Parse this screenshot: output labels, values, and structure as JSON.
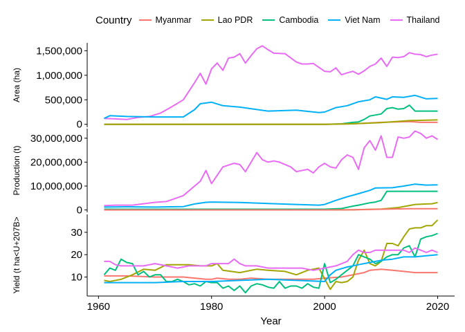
{
  "legend": {
    "title": "Country",
    "items": [
      {
        "name": "Myanmar",
        "color": "#F8766D"
      },
      {
        "name": "Lao PDR",
        "color": "#A3A500"
      },
      {
        "name": "Cambodia",
        "color": "#00BF7D"
      },
      {
        "name": "Viet Nam",
        "color": "#00B0F6"
      },
      {
        "name": "Thailand",
        "color": "#E76BF3"
      }
    ]
  },
  "chart_data": [
    {
      "type": "line",
      "title": "",
      "ylabel": "Area (ha)",
      "ylim": [
        -60000,
        1660000
      ],
      "yticks": [
        0,
        500000,
        1000000,
        1500000
      ],
      "ytick_labels": [
        "0",
        "500,000",
        "1,000,000",
        "1,500,000"
      ],
      "series": [
        {
          "name": "Thailand",
          "color": "#E76BF3",
          "x": [
            1961,
            1963,
            1965,
            1967,
            1969,
            1971,
            1973,
            1975,
            1977,
            1978,
            1979,
            1980,
            1981,
            1982,
            1983,
            1984,
            1985,
            1986,
            1987,
            1988,
            1989,
            1990,
            1991,
            1993,
            1995,
            1996,
            1997,
            1998,
            2000,
            2001,
            2002,
            2003,
            2004,
            2005,
            2006,
            2007,
            2008,
            2009,
            2010,
            2011,
            2012,
            2013,
            2014,
            2015,
            2016,
            2017,
            2018,
            2019,
            2020
          ],
          "y": [
            120000,
            110000,
            100000,
            140000,
            160000,
            230000,
            360000,
            500000,
            850000,
            1040000,
            820000,
            1130000,
            1250000,
            1100000,
            1350000,
            1370000,
            1440000,
            1250000,
            1400000,
            1540000,
            1600000,
            1520000,
            1450000,
            1440000,
            1270000,
            1230000,
            1230000,
            1240000,
            1080000,
            1070000,
            1150000,
            1010000,
            1050000,
            1080000,
            1020000,
            1090000,
            1180000,
            1230000,
            1350000,
            1180000,
            1370000,
            1360000,
            1380000,
            1460000,
            1430000,
            1420000,
            1380000,
            1410000,
            1430000
          ]
        },
        {
          "name": "Viet Nam",
          "color": "#00B0F6",
          "x": [
            1961,
            1962,
            1965,
            1970,
            1975,
            1977,
            1978,
            1980,
            1982,
            1985,
            1990,
            1995,
            1999,
            2000,
            2002,
            2004,
            2006,
            2008,
            2009,
            2011,
            2012,
            2014,
            2016,
            2018,
            2020
          ],
          "y": [
            120000,
            175000,
            160000,
            150000,
            150000,
            300000,
            420000,
            450000,
            380000,
            350000,
            270000,
            290000,
            240000,
            250000,
            340000,
            380000,
            460000,
            500000,
            560000,
            510000,
            560000,
            550000,
            590000,
            520000,
            530000
          ]
        },
        {
          "name": "Cambodia",
          "color": "#00BF7D",
          "x": [
            1961,
            1980,
            2000,
            2003,
            2005,
            2006,
            2007,
            2008,
            2010,
            2011,
            2012,
            2013,
            2014,
            2015,
            2016,
            2018,
            2020
          ],
          "y": [
            0,
            0,
            0,
            10000,
            40000,
            50000,
            100000,
            170000,
            210000,
            320000,
            340000,
            310000,
            320000,
            390000,
            270000,
            270000,
            270000
          ]
        },
        {
          "name": "Myanmar",
          "color": "#F8766D",
          "x": [
            1961,
            1980,
            2000,
            2005,
            2010,
            2015,
            2017,
            2020
          ],
          "y": [
            0,
            0,
            0,
            10000,
            40000,
            55000,
            40000,
            40000
          ]
        },
        {
          "name": "Lao PDR",
          "color": "#A3A500",
          "x": [
            1961,
            1980,
            2000,
            2005,
            2010,
            2015,
            2020
          ],
          "y": [
            0,
            0,
            0,
            10000,
            35000,
            75000,
            90000
          ]
        }
      ]
    },
    {
      "type": "line",
      "title": "",
      "ylabel": "Production (t)",
      "ylim": [
        -1000000,
        34000000
      ],
      "yticks": [
        0,
        10000000,
        20000000,
        30000000
      ],
      "ytick_labels": [
        "0",
        "10,000,000",
        "20,000,000",
        "30,000,000"
      ],
      "series": [
        {
          "name": "Thailand",
          "color": "#E76BF3",
          "x": [
            1961,
            1963,
            1966,
            1970,
            1972,
            1975,
            1977,
            1978,
            1979,
            1980,
            1982,
            1984,
            1985,
            1986,
            1987,
            1988,
            1989,
            1990,
            1991,
            1992,
            1994,
            1995,
            1997,
            1998,
            1999,
            2000,
            2001,
            2002,
            2003,
            2004,
            2005,
            2006,
            2007,
            2008,
            2009,
            2010,
            2011,
            2012,
            2013,
            2014,
            2015,
            2016,
            2017,
            2018,
            2019,
            2020
          ],
          "y": [
            1800000,
            2000000,
            2000000,
            3200000,
            3500000,
            6000000,
            10000000,
            12000000,
            16500000,
            11000000,
            18000000,
            19500000,
            19000000,
            16000000,
            20000000,
            24000000,
            21000000,
            20000000,
            20500000,
            20000000,
            18000000,
            16000000,
            17000000,
            15500000,
            18000000,
            19500000,
            18000000,
            17500000,
            21000000,
            23000000,
            22000000,
            17000000,
            26000000,
            29000000,
            25000000,
            31000000,
            22000000,
            22000000,
            30500000,
            30000000,
            30500000,
            33000000,
            32000000,
            30000000,
            31000000,
            29500000
          ]
        },
        {
          "name": "Viet Nam",
          "color": "#00B0F6",
          "x": [
            1961,
            1965,
            1970,
            1975,
            1977,
            1979,
            1980,
            1985,
            1990,
            1995,
            1999,
            2000,
            2002,
            2004,
            2006,
            2008,
            2009,
            2012,
            2014,
            2016,
            2018,
            2020
          ],
          "y": [
            1200000,
            1300000,
            1200000,
            1400000,
            2500000,
            3200000,
            3300000,
            3100000,
            2700000,
            2300000,
            2000000,
            2300000,
            4000000,
            5500000,
            6800000,
            8200000,
            9200000,
            9300000,
            10000000,
            10800000,
            10400000,
            10500000
          ]
        },
        {
          "name": "Cambodia",
          "color": "#00BF7D",
          "x": [
            1961,
            2000,
            2003,
            2005,
            2006,
            2008,
            2009,
            2010,
            2011,
            2012,
            2014,
            2016,
            2018,
            2020
          ],
          "y": [
            300000,
            300000,
            600000,
            1600000,
            2000000,
            3000000,
            3300000,
            4000000,
            7800000,
            7800000,
            7800000,
            7800000,
            7800000,
            7800000
          ]
        },
        {
          "name": "Lao PDR",
          "color": "#A3A500",
          "x": [
            1961,
            2000,
            2005,
            2010,
            2013,
            2016,
            2018,
            2019,
            2020
          ],
          "y": [
            0,
            0,
            100000,
            400000,
            1000000,
            2300000,
            2500000,
            2600000,
            3100000
          ]
        },
        {
          "name": "Myanmar",
          "color": "#F8766D",
          "x": [
            1961,
            2000,
            2005,
            2010,
            2015,
            2020
          ],
          "y": [
            0,
            0,
            50000,
            300000,
            500000,
            500000
          ]
        }
      ]
    },
    {
      "type": "line",
      "title": "",
      "xlabel": "Year",
      "ylabel": "Yield (t ha<U+207B>",
      "ylim": [
        1.5,
        38
      ],
      "xlim": [
        1958,
        2023
      ],
      "xticks": [
        1960,
        1980,
        2000,
        2020
      ],
      "yticks": [
        10,
        20,
        30
      ],
      "ytick_labels": [
        "10",
        "20",
        "30"
      ],
      "series": [
        {
          "name": "Myanmar",
          "color": "#F8766D",
          "x": [
            1961,
            1965,
            1970,
            1975,
            1977,
            1979,
            1980,
            1981,
            1983,
            1985,
            1987,
            1990,
            1995,
            1998,
            2000,
            2003,
            2005,
            2007,
            2008,
            2010,
            2012,
            2014,
            2016,
            2018,
            2020
          ],
          "y": [
            10.5,
            10.5,
            10,
            10,
            9.5,
            9,
            9,
            9.5,
            9,
            9,
            9.5,
            9,
            9,
            9,
            9.5,
            10,
            11,
            12,
            13,
            13.5,
            13,
            12.5,
            12,
            12,
            12
          ]
        },
        {
          "name": "Lao PDR",
          "color": "#A3A500",
          "x": [
            1961,
            1962,
            1964,
            1966,
            1968,
            1970,
            1972,
            1974,
            1976,
            1978,
            1980,
            1981,
            1982,
            1985,
            1988,
            1990,
            1993,
            1995,
            1997,
            1999,
            2001,
            2002,
            2003,
            2004,
            2005,
            2006,
            2007,
            2008,
            2009,
            2010,
            2011,
            2012,
            2013,
            2014,
            2015,
            2016,
            2017,
            2018,
            2019,
            2020
          ],
          "y": [
            8.5,
            8,
            9,
            11,
            13.5,
            13,
            15.5,
            15.5,
            15.5,
            15,
            15,
            16,
            13,
            12,
            13.5,
            13,
            12.5,
            11,
            13,
            14,
            4.5,
            8,
            7.5,
            8,
            10,
            17.5,
            22,
            16,
            15,
            17,
            25,
            25,
            24,
            28,
            31.5,
            32,
            32,
            33,
            33,
            35.5
          ]
        },
        {
          "name": "Cambodia",
          "color": "#00BF7D",
          "x": [
            1961,
            1962,
            1963,
            1964,
            1965,
            1966,
            1967,
            1968,
            1969,
            1970,
            1971,
            1972,
            1973,
            1974,
            1975,
            1976,
            1977,
            1978,
            1979,
            1980,
            1981,
            1982,
            1983,
            1984,
            1985,
            1986,
            1987,
            1988,
            1989,
            1990,
            1991,
            1992,
            1993,
            1994,
            1995,
            1996,
            1997,
            1998,
            1999,
            2000,
            2001,
            2002,
            2003,
            2004,
            2005,
            2006,
            2007,
            2008,
            2009,
            2010,
            2011,
            2012,
            2013,
            2014,
            2015,
            2016,
            2017,
            2018,
            2019,
            2020
          ],
          "y": [
            11,
            14,
            13,
            18,
            16.5,
            16,
            11,
            12.5,
            10,
            11,
            11,
            8,
            8,
            9,
            8,
            6.5,
            7,
            6,
            8,
            7.5,
            7.5,
            5,
            6,
            4,
            6,
            3,
            6,
            7,
            6.5,
            5.5,
            5,
            8,
            5,
            6,
            6,
            5,
            7,
            5.5,
            5,
            16,
            7.5,
            9,
            11,
            13,
            15,
            20,
            19,
            18,
            16,
            17,
            19,
            20,
            20,
            23,
            24,
            19,
            27,
            28,
            28.5,
            29.5
          ]
        },
        {
          "name": "Viet Nam",
          "color": "#00B0F6",
          "x": [
            1961,
            1965,
            1970,
            1975,
            1980,
            1985,
            1990,
            1995,
            2000,
            2001,
            2002,
            2004,
            2006,
            2008,
            2010,
            2012,
            2014,
            2016,
            2018,
            2020
          ],
          "y": [
            7.5,
            7.5,
            7.5,
            8,
            8,
            8.5,
            9,
            8.5,
            8,
            11,
            13,
            14.5,
            15.5,
            16.5,
            17.5,
            18,
            19,
            19,
            19.5,
            20
          ]
        },
        {
          "name": "Thailand",
          "color": "#E76BF3",
          "x": [
            1961,
            1962,
            1963,
            1964,
            1966,
            1968,
            1970,
            1972,
            1974,
            1976,
            1978,
            1979,
            1980,
            1981,
            1982,
            1983,
            1984,
            1985,
            1986,
            1988,
            1990,
            1992,
            1994,
            1996,
            1998,
            2000,
            2002,
            2004,
            2005,
            2006,
            2007,
            2008,
            2009,
            2010,
            2012,
            2014,
            2015,
            2016,
            2017,
            2018,
            2019,
            2020
          ],
          "y": [
            17,
            17,
            15.5,
            15,
            15,
            15,
            16,
            15,
            14,
            15,
            15,
            15,
            16,
            16,
            16,
            16,
            18,
            16,
            15,
            15,
            14,
            14,
            14,
            14,
            13,
            14,
            15,
            17,
            20,
            22,
            21,
            21,
            22,
            22,
            22,
            22,
            21,
            23,
            22,
            21,
            22,
            21
          ]
        }
      ]
    }
  ],
  "x_axis": {
    "label": "Year",
    "ticks": [
      "1960",
      "1980",
      "2000",
      "2020"
    ]
  }
}
